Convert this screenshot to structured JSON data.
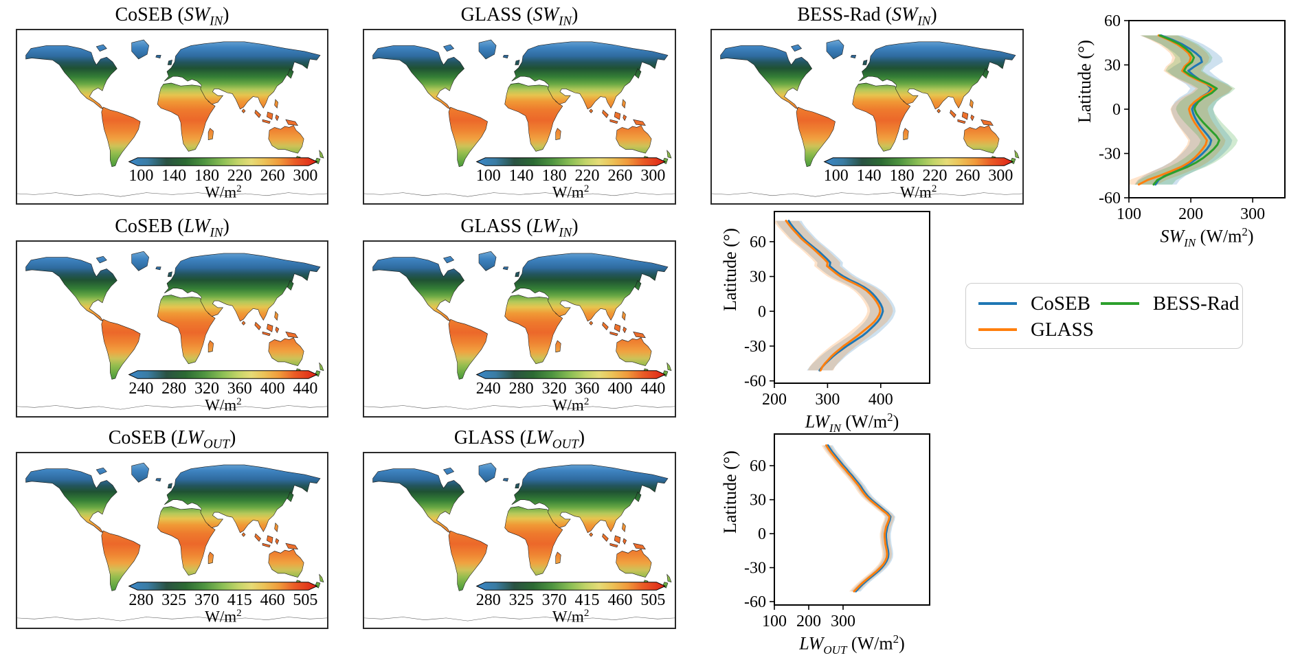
{
  "punct": {
    "open": " (",
    "close": ")"
  },
  "units": {
    "base": "W/m",
    "exp": "2"
  },
  "colors": {
    "coseb": "#1f77b4",
    "glass": "#ff7f0e",
    "bess_rad": "#2ca02c",
    "map_border": "#2a2a2a",
    "colorbar_gradient": [
      {
        "o": 0.0,
        "c": "#3b87c8"
      },
      {
        "o": 0.1,
        "c": "#3a7ca3"
      },
      {
        "o": 0.2,
        "c": "#2a5242"
      },
      {
        "o": 0.3,
        "c": "#2c6a33"
      },
      {
        "o": 0.4,
        "c": "#4e9440"
      },
      {
        "o": 0.5,
        "c": "#8cbf55"
      },
      {
        "o": 0.58,
        "c": "#c3d468"
      },
      {
        "o": 0.65,
        "c": "#e6db76"
      },
      {
        "o": 0.72,
        "c": "#ecc257"
      },
      {
        "o": 0.8,
        "c": "#f09a3b"
      },
      {
        "o": 0.88,
        "c": "#ea5d26"
      },
      {
        "o": 1.0,
        "c": "#de2217"
      }
    ]
  },
  "maps": [
    {
      "product": "CoSEB",
      "var": "SW",
      "sub": "IN",
      "cbar_ticks": [
        "100",
        "140",
        "180",
        "220",
        "260",
        "300"
      ]
    },
    {
      "product": "GLASS",
      "var": "SW",
      "sub": "IN",
      "cbar_ticks": [
        "100",
        "140",
        "180",
        "220",
        "260",
        "300"
      ]
    },
    {
      "product": "BESS-Rad",
      "var": "SW",
      "sub": "IN",
      "cbar_ticks": [
        "100",
        "140",
        "180",
        "220",
        "260",
        "300"
      ]
    },
    {
      "product": "CoSEB",
      "var": "LW",
      "sub": "IN",
      "cbar_ticks": [
        "240",
        "280",
        "320",
        "360",
        "400",
        "440"
      ]
    },
    {
      "product": "GLASS",
      "var": "LW",
      "sub": "IN",
      "cbar_ticks": [
        "240",
        "280",
        "320",
        "360",
        "400",
        "440"
      ]
    },
    {
      "product": "CoSEB",
      "var": "LW",
      "sub": "OUT",
      "cbar_ticks": [
        "280",
        "325",
        "370",
        "415",
        "460",
        "505"
      ]
    },
    {
      "product": "GLASS",
      "var": "LW",
      "sub": "OUT",
      "cbar_ticks": [
        "280",
        "325",
        "370",
        "415",
        "460",
        "505"
      ]
    }
  ],
  "profiles": [
    {
      "ylabel": "Latitude (°)",
      "xvar": "SW",
      "xsub": "IN",
      "xunit_open": " (W/m",
      "xunit_exp": "2",
      "xunit_close": ")"
    },
    {
      "ylabel": "Latitude (°)",
      "xvar": "LW",
      "xsub": "IN",
      "xunit_open": " (W/m",
      "xunit_exp": "2",
      "xunit_close": ")"
    },
    {
      "ylabel": "Latitude (°)",
      "xvar": "LW",
      "xsub": "OUT",
      "xunit_open": " (W/m",
      "xunit_exp": "2",
      "xunit_close": ")"
    }
  ],
  "legend": {
    "items": [
      {
        "label": "CoSEB",
        "color": "#1f77b4"
      },
      {
        "label": "BESS-Rad",
        "color": "#2ca02c"
      },
      {
        "label": "GLASS",
        "color": "#ff7f0e"
      }
    ]
  },
  "chart_data": [
    {
      "type": "line",
      "title": "Zonal mean shortwave incoming radiation",
      "xlabel": "SW_IN (W/m²)",
      "ylabel": "Latitude (°)",
      "xlim": [
        100,
        352
      ],
      "ylim": [
        -60,
        60
      ],
      "xticks": [
        100,
        200,
        300
      ],
      "yticks": [
        60,
        30,
        0,
        -30,
        -60
      ],
      "grid": false,
      "series": [
        {
          "name": "CoSEB",
          "color": "#1f77b4",
          "band": 34,
          "lat": [
            50,
            47,
            44,
            41,
            38,
            35,
            32,
            29,
            26,
            23,
            20,
            17,
            14,
            11,
            8,
            5,
            2,
            0,
            -3,
            -6,
            -9,
            -12,
            -15,
            -18,
            -21,
            -24,
            -27,
            -30,
            -33,
            -36,
            -39,
            -42,
            -45,
            -48,
            -51
          ],
          "values": [
            152,
            170,
            186,
            198,
            208,
            216,
            218,
            206,
            196,
            204,
            214,
            226,
            233,
            228,
            216,
            208,
            204,
            202,
            204,
            207,
            211,
            216,
            222,
            228,
            233,
            231,
            226,
            219,
            211,
            201,
            188,
            172,
            158,
            148,
            143
          ]
        },
        {
          "name": "GLASS",
          "color": "#ff7f0e",
          "band": 30,
          "lat": [
            50,
            47,
            44,
            41,
            38,
            35,
            32,
            29,
            26,
            23,
            20,
            17,
            14,
            11,
            8,
            5,
            2,
            0,
            -3,
            -6,
            -9,
            -12,
            -15,
            -18,
            -21,
            -24,
            -27,
            -30,
            -33,
            -36,
            -39,
            -42,
            -45,
            -48,
            -51
          ],
          "values": [
            148,
            164,
            178,
            188,
            196,
            200,
            198,
            190,
            186,
            196,
            210,
            226,
            238,
            230,
            216,
            206,
            199,
            197,
            199,
            202,
            206,
            211,
            216,
            221,
            226,
            224,
            219,
            213,
            206,
            197,
            185,
            168,
            150,
            130,
            116
          ]
        },
        {
          "name": "BESS-Rad",
          "color": "#2ca02c",
          "band": 30,
          "lat": [
            50,
            47,
            44,
            41,
            38,
            35,
            32,
            29,
            26,
            23,
            20,
            17,
            14,
            11,
            8,
            5,
            2,
            0,
            -3,
            -6,
            -9,
            -12,
            -15,
            -18,
            -21,
            -24,
            -27,
            -30,
            -33,
            -36,
            -39,
            -42,
            -45,
            -48,
            -51
          ],
          "values": [
            150,
            167,
            182,
            192,
            200,
            205,
            202,
            193,
            189,
            199,
            214,
            230,
            242,
            234,
            221,
            212,
            207,
            206,
            209,
            214,
            220,
            227,
            234,
            241,
            246,
            243,
            237,
            229,
            220,
            209,
            195,
            177,
            160,
            146,
            140
          ]
        }
      ]
    },
    {
      "type": "line",
      "title": "Zonal mean longwave incoming radiation",
      "xlabel": "LW_IN (W/m²)",
      "ylabel": "Latitude (°)",
      "xlim": [
        200,
        492
      ],
      "ylim": [
        -62,
        86
      ],
      "xticks": [
        200,
        300,
        400
      ],
      "yticks": [
        60,
        30,
        0,
        -30,
        -60
      ],
      "grid": false,
      "series": [
        {
          "name": "CoSEB",
          "color": "#1f77b4",
          "band": 24,
          "lat": [
            78,
            75,
            72,
            69,
            66,
            63,
            60,
            57,
            54,
            51,
            48,
            45,
            42,
            39,
            36,
            33,
            30,
            27,
            24,
            21,
            18,
            15,
            12,
            9,
            6,
            3,
            0,
            -3,
            -6,
            -9,
            -12,
            -15,
            -18,
            -21,
            -24,
            -27,
            -30,
            -33,
            -36,
            -39,
            -42,
            -45,
            -48,
            -51
          ],
          "values": [
            227,
            231,
            236,
            242,
            248,
            254,
            261,
            269,
            277,
            285,
            292,
            299,
            305,
            304,
            312,
            320,
            330,
            342,
            356,
            368,
            378,
            385,
            391,
            396,
            400,
            403,
            404,
            402,
            399,
            394,
            388,
            381,
            374,
            366,
            356,
            346,
            336,
            327,
            318,
            310,
            303,
            296,
            290,
            285
          ]
        },
        {
          "name": "GLASS",
          "color": "#ff7f0e",
          "band": 24,
          "lat": [
            78,
            75,
            72,
            69,
            66,
            63,
            60,
            57,
            54,
            51,
            48,
            45,
            42,
            39,
            36,
            33,
            30,
            27,
            24,
            21,
            18,
            15,
            12,
            9,
            6,
            3,
            0,
            -3,
            -6,
            -9,
            -12,
            -15,
            -18,
            -21,
            -24,
            -27,
            -30,
            -33,
            -36,
            -39,
            -42,
            -45,
            -48,
            -51
          ],
          "values": [
            222,
            227,
            232,
            238,
            244,
            250,
            257,
            265,
            273,
            280,
            287,
            294,
            300,
            299,
            307,
            315,
            324,
            336,
            350,
            363,
            373,
            380,
            386,
            391,
            395,
            398,
            399,
            397,
            393,
            388,
            381,
            373,
            365,
            357,
            348,
            339,
            330,
            322,
            314,
            307,
            301,
            295,
            290,
            287
          ]
        }
      ]
    },
    {
      "type": "line",
      "title": "Zonal mean longwave outgoing radiation",
      "xlabel": "LW_OUT (W/m²)",
      "ylabel": "Latitude (°)",
      "xlim": [
        100,
        552
      ],
      "ylim": [
        -63,
        88
      ],
      "xticks": [
        100,
        200,
        300
      ],
      "yticks": [
        60,
        30,
        0,
        -30,
        -60
      ],
      "grid": false,
      "series": [
        {
          "name": "CoSEB",
          "color": "#1f77b4",
          "band": 14,
          "lat": [
            78,
            75,
            72,
            69,
            66,
            63,
            60,
            57,
            54,
            51,
            48,
            45,
            42,
            39,
            36,
            33,
            30,
            27,
            24,
            21,
            18,
            15,
            12,
            9,
            6,
            3,
            0,
            -3,
            -6,
            -9,
            -12,
            -15,
            -18,
            -21,
            -24,
            -27,
            -30,
            -33,
            -36,
            -39,
            -42,
            -45,
            -48,
            -51
          ],
          "values": [
            256,
            262,
            269,
            277,
            285,
            293,
            301,
            310,
            318,
            327,
            335,
            343,
            351,
            357,
            364,
            372,
            382,
            394,
            406,
            418,
            430,
            438,
            436,
            432,
            429,
            427,
            425,
            425,
            426,
            427,
            429,
            431,
            432,
            431,
            427,
            421,
            413,
            403,
            391,
            379,
            367,
            356,
            346,
            337
          ]
        },
        {
          "name": "GLASS",
          "color": "#ff7f0e",
          "band": 14,
          "lat": [
            78,
            75,
            72,
            69,
            66,
            63,
            60,
            57,
            54,
            51,
            48,
            45,
            42,
            39,
            36,
            33,
            30,
            27,
            24,
            21,
            18,
            15,
            12,
            9,
            6,
            3,
            0,
            -3,
            -6,
            -9,
            -12,
            -15,
            -18,
            -21,
            -24,
            -27,
            -30,
            -33,
            -36,
            -39,
            -42,
            -45,
            -48,
            -51
          ],
          "values": [
            251,
            257,
            264,
            272,
            280,
            288,
            296,
            305,
            313,
            322,
            330,
            338,
            346,
            352,
            359,
            367,
            377,
            389,
            401,
            413,
            426,
            435,
            433,
            429,
            425,
            423,
            421,
            421,
            422,
            423,
            425,
            427,
            428,
            427,
            423,
            417,
            408,
            398,
            386,
            374,
            362,
            351,
            341,
            332
          ]
        }
      ]
    }
  ]
}
